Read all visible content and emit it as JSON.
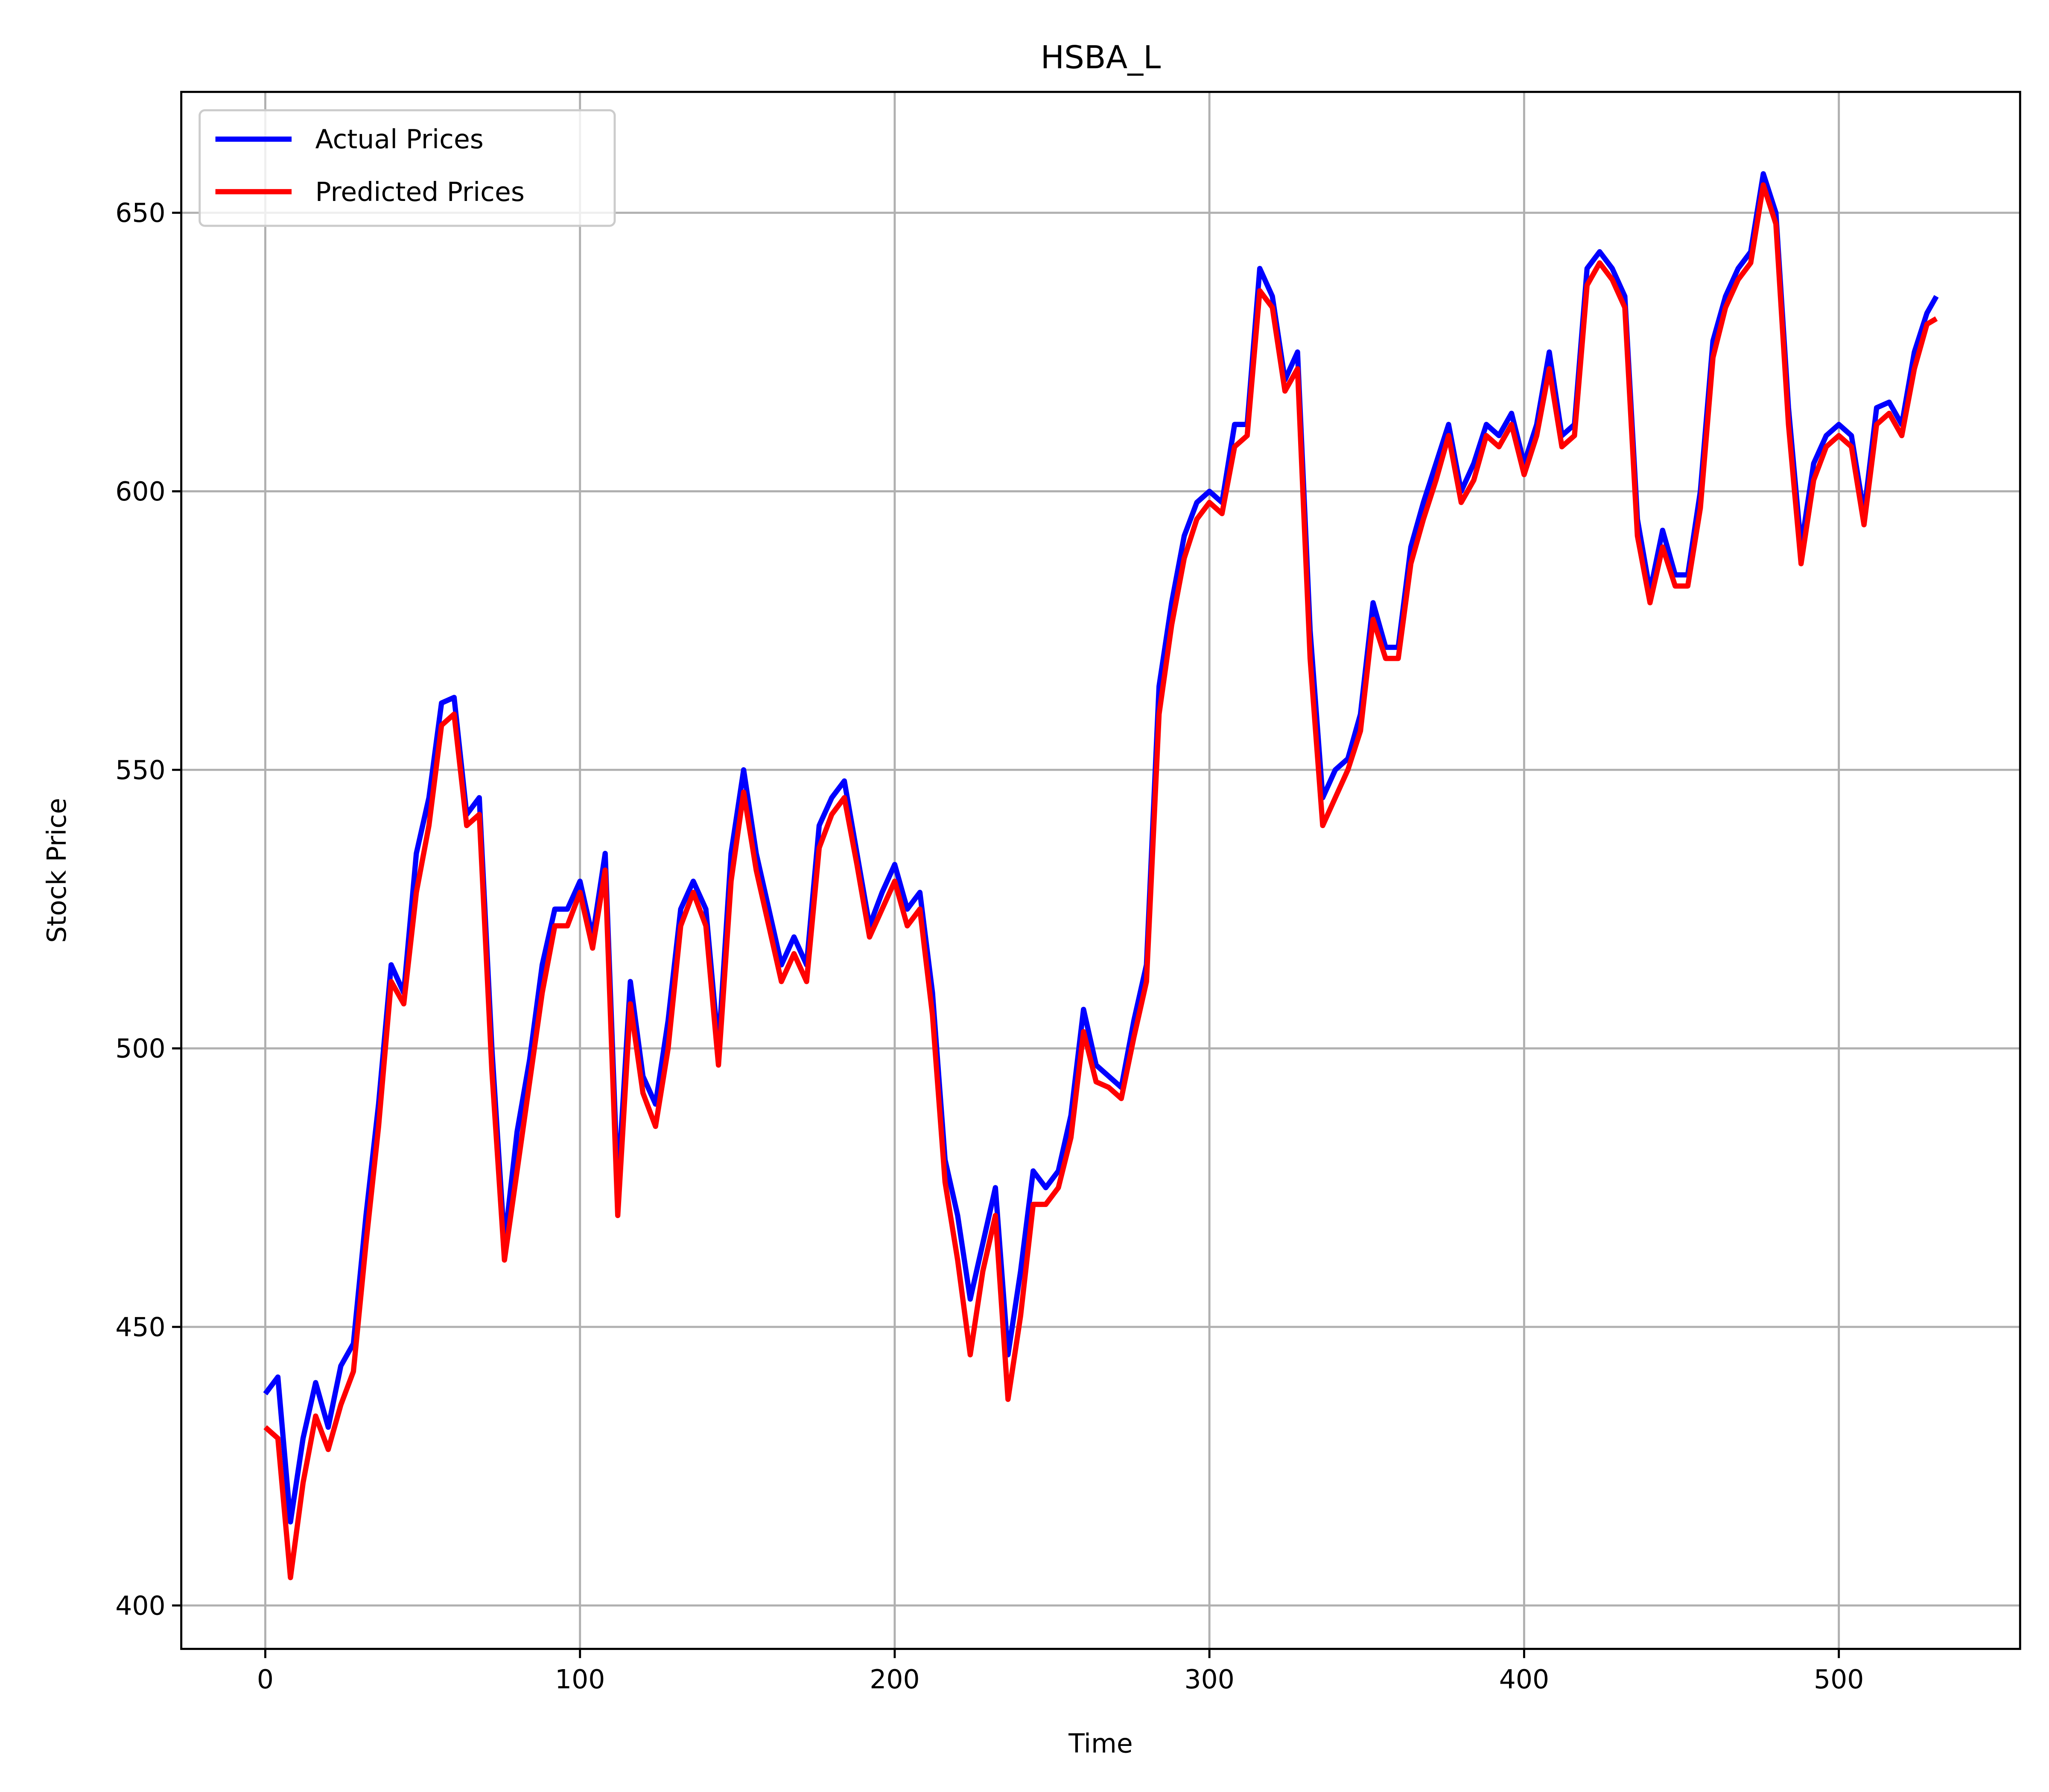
{
  "chart_data": {
    "type": "line",
    "title": "HSBA_L",
    "x_label": "Time",
    "y_label": "Stock Price",
    "x": [
      0,
      4,
      8,
      12,
      16,
      20,
      24,
      28,
      32,
      36,
      40,
      44,
      48,
      52,
      56,
      60,
      64,
      68,
      72,
      76,
      80,
      84,
      88,
      92,
      96,
      100,
      104,
      108,
      112,
      116,
      120,
      124,
      128,
      132,
      136,
      140,
      144,
      148,
      152,
      156,
      160,
      164,
      168,
      172,
      176,
      180,
      184,
      188,
      192,
      196,
      200,
      204,
      208,
      212,
      216,
      220,
      224,
      228,
      232,
      236,
      240,
      244,
      248,
      252,
      256,
      260,
      264,
      268,
      272,
      276,
      280,
      284,
      288,
      292,
      296,
      300,
      304,
      308,
      312,
      316,
      320,
      324,
      328,
      332,
      336,
      340,
      344,
      348,
      352,
      356,
      360,
      364,
      368,
      372,
      376,
      380,
      384,
      388,
      392,
      396,
      400,
      404,
      408,
      412,
      416,
      420,
      424,
      428,
      432,
      436,
      440,
      444,
      448,
      452,
      456,
      460,
      464,
      468,
      472,
      476,
      480,
      484,
      488,
      492,
      496,
      500,
      504,
      508,
      512,
      516,
      520,
      524,
      528,
      531
    ],
    "series": [
      {
        "name": "Actual Prices",
        "color": "#0000ff",
        "values": [
          438,
          441,
          415,
          430,
          440,
          432,
          443,
          447,
          470,
          490,
          515,
          510,
          535,
          545,
          562,
          563,
          542,
          545,
          500,
          465,
          485,
          498,
          515,
          525,
          525,
          530,
          520,
          535,
          475,
          512,
          495,
          490,
          505,
          525,
          530,
          525,
          500,
          535,
          550,
          535,
          525,
          515,
          520,
          515,
          540,
          545,
          548,
          535,
          522,
          528,
          533,
          525,
          528,
          510,
          480,
          470,
          455,
          465,
          475,
          445,
          460,
          478,
          475,
          478,
          488,
          507,
          497,
          495,
          493,
          505,
          515,
          565,
          580,
          592,
          598,
          600,
          598,
          612,
          612,
          640,
          635,
          620,
          625,
          575,
          545,
          550,
          552,
          560,
          580,
          572,
          572,
          590,
          598,
          605,
          612,
          600,
          605,
          612,
          610,
          614,
          605,
          612,
          625,
          610,
          612,
          640,
          643,
          640,
          635,
          595,
          582,
          593,
          585,
          585,
          600,
          627,
          635,
          640,
          643,
          657,
          650,
          615,
          590,
          605,
          610,
          612,
          610,
          596,
          615,
          616,
          612,
          625,
          632,
          635
        ]
      },
      {
        "name": "Predicted Prices",
        "color": "#ff0000",
        "values": [
          432,
          430,
          405,
          422,
          434,
          428,
          436,
          442,
          465,
          486,
          512,
          508,
          528,
          540,
          558,
          560,
          540,
          542,
          496,
          462,
          478,
          494,
          510,
          522,
          522,
          528,
          518,
          532,
          470,
          508,
          492,
          486,
          500,
          522,
          528,
          522,
          497,
          530,
          546,
          532,
          522,
          512,
          517,
          512,
          536,
          542,
          545,
          533,
          520,
          525,
          530,
          522,
          525,
          506,
          476,
          462,
          445,
          460,
          470,
          437,
          452,
          472,
          472,
          475,
          484,
          503,
          494,
          493,
          491,
          502,
          512,
          560,
          576,
          588,
          595,
          598,
          596,
          608,
          610,
          636,
          633,
          618,
          622,
          570,
          540,
          545,
          550,
          557,
          577,
          570,
          570,
          587,
          595,
          602,
          610,
          598,
          602,
          610,
          608,
          612,
          603,
          610,
          622,
          608,
          610,
          637,
          641,
          638,
          633,
          592,
          580,
          590,
          583,
          583,
          597,
          624,
          633,
          638,
          641,
          655,
          648,
          612,
          587,
          602,
          608,
          610,
          608,
          594,
          612,
          614,
          610,
          622,
          630,
          631
        ]
      }
    ],
    "xlim": [
      -26.7,
      557.6
    ],
    "ylim": [
      392.2,
      671.7
    ],
    "xticks": [
      0,
      100,
      200,
      300,
      400,
      500
    ],
    "yticks": [
      400,
      450,
      500,
      550,
      600,
      650
    ],
    "grid": true,
    "legend": "upper left"
  }
}
